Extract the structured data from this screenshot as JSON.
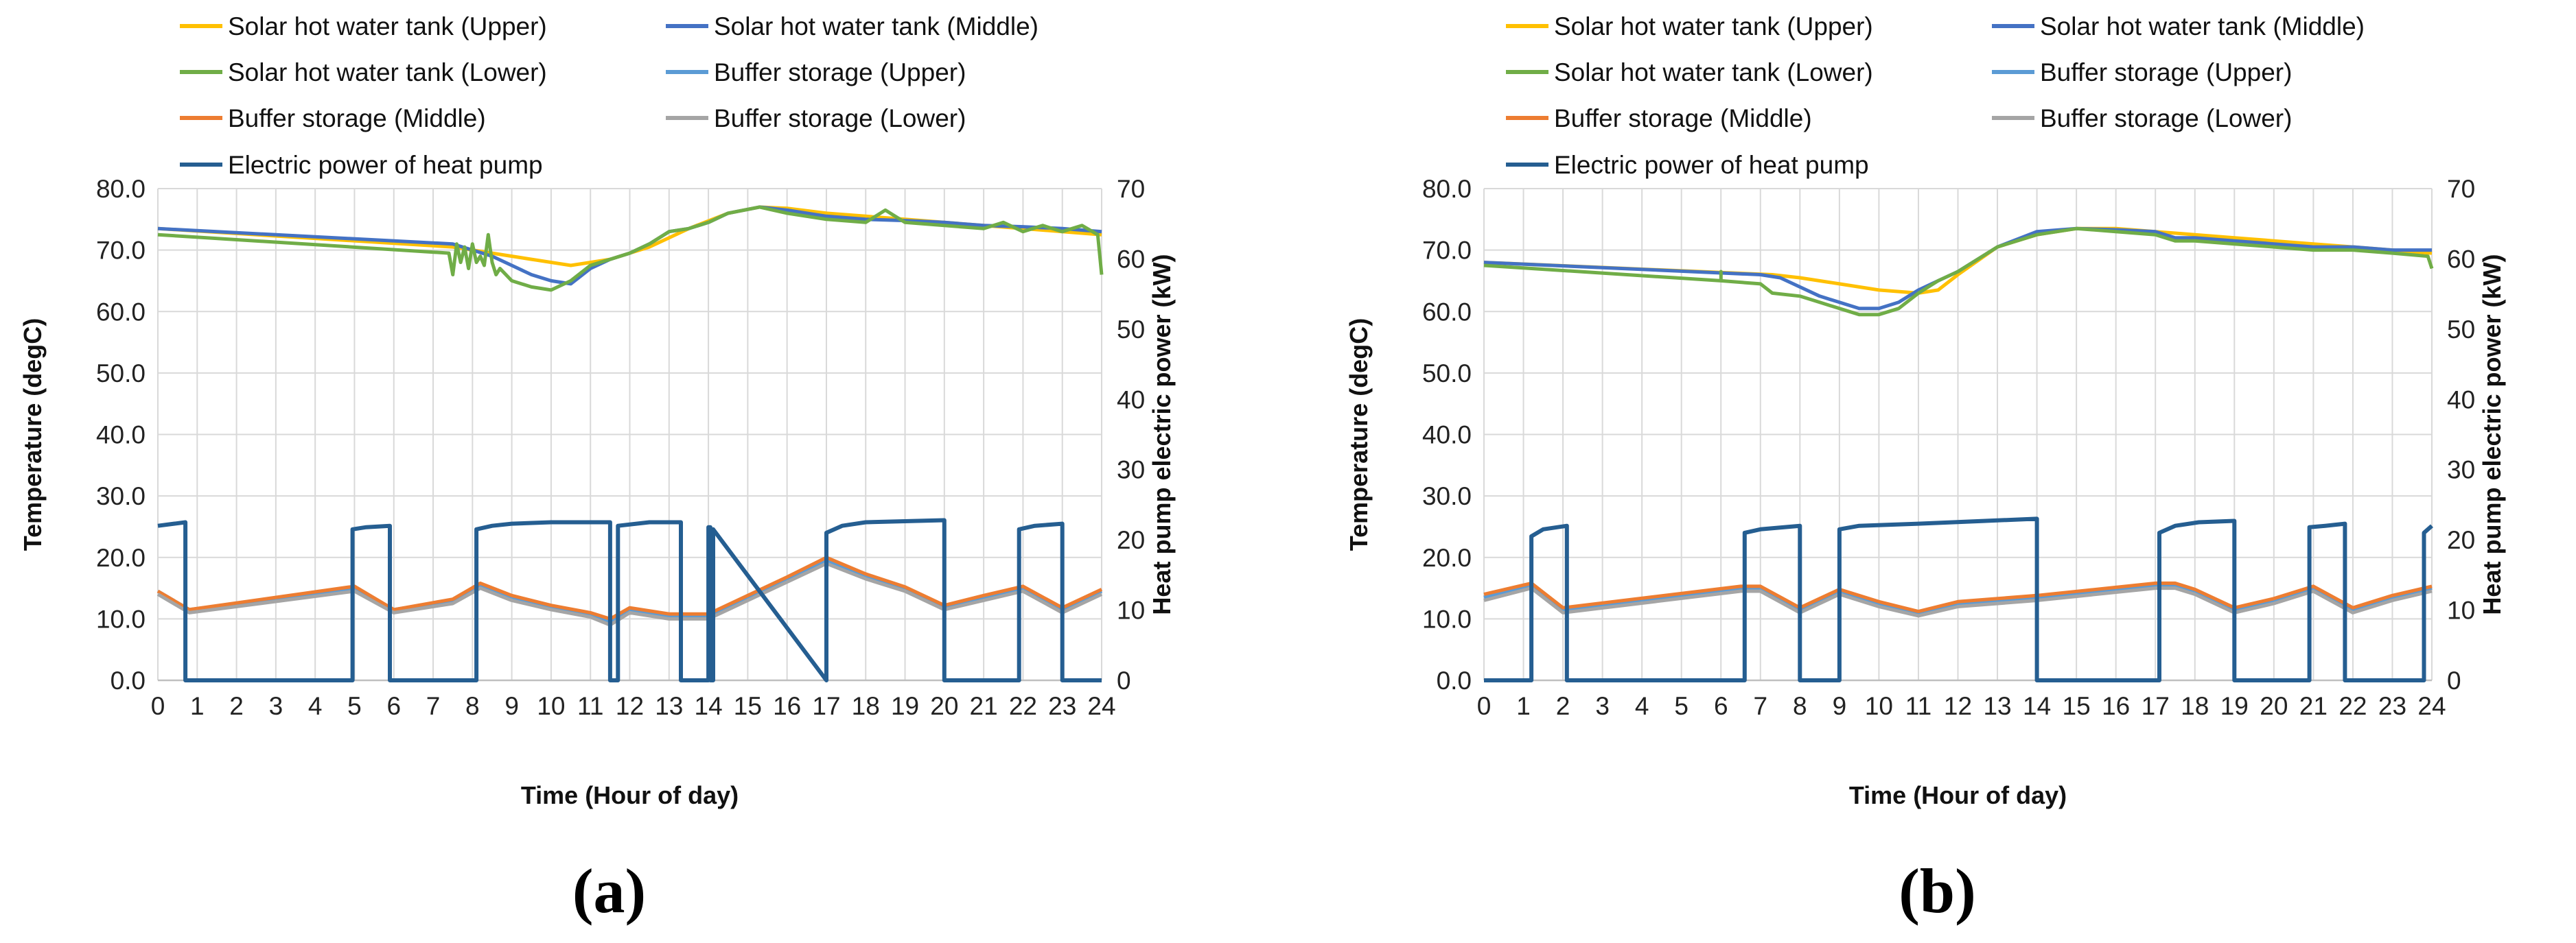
{
  "chart_data": [
    {
      "type": "line",
      "panel_label": "(a)",
      "xlabel": "Time (Hour of day)",
      "ylabel": "Temperature (degC)",
      "y2label": "Heat pump electric power (kW)",
      "xlim": [
        0,
        24
      ],
      "ylim": [
        0,
        80
      ],
      "y2lim": [
        0,
        70
      ],
      "x_ticks": [
        "0",
        "1",
        "2",
        "3",
        "4",
        "5",
        "6",
        "7",
        "8",
        "9",
        "10",
        "11",
        "12",
        "13",
        "14",
        "15",
        "16",
        "17",
        "18",
        "19",
        "20",
        "21",
        "22",
        "23",
        "24"
      ],
      "y_ticks": [
        "0.0",
        "10.0",
        "20.0",
        "30.0",
        "40.0",
        "50.0",
        "60.0",
        "70.0",
        "80.0"
      ],
      "y2_ticks": [
        "0",
        "10",
        "20",
        "30",
        "40",
        "50",
        "60",
        "70"
      ],
      "grid": true,
      "legend_position": "top",
      "series": [
        {
          "name": "Solar hot water tank (Upper)",
          "color": "#FFC000",
          "axis": "left",
          "x": [
            0,
            7.5,
            8.5,
            9.5,
            10.5,
            11.5,
            12.5,
            13.5,
            14.5,
            15.3,
            16,
            17,
            18,
            19,
            20,
            21,
            22,
            23,
            24
          ],
          "y": [
            73.5,
            70.5,
            69.5,
            68.5,
            67.5,
            68.5,
            70.5,
            73.5,
            76,
            77,
            76.8,
            76,
            75.5,
            75,
            74.5,
            74,
            73.5,
            73,
            72.5
          ]
        },
        {
          "name": "Solar hot water tank (Middle)",
          "color": "#4472C4",
          "axis": "left",
          "x": [
            0,
            7.5,
            8,
            8.5,
            9,
            9.5,
            10,
            10.5,
            11,
            11.5,
            12,
            12.5,
            13,
            13.5,
            14,
            14.5,
            15.3,
            16,
            17,
            18,
            19,
            20,
            21,
            22,
            23,
            24
          ],
          "y": [
            73.5,
            71,
            70,
            69,
            67.5,
            66,
            65,
            64.5,
            67,
            68.5,
            69.5,
            71,
            73,
            73.5,
            74.5,
            76,
            77,
            76.5,
            75.5,
            75,
            74.8,
            74.5,
            74,
            73.8,
            73.5,
            73
          ]
        },
        {
          "name": "Solar hot water tank (Lower)",
          "color": "#70AD47",
          "axis": "left",
          "x": [
            0,
            7.4,
            7.5,
            7.6,
            7.7,
            7.8,
            7.9,
            8,
            8.1,
            8.2,
            8.3,
            8.4,
            8.5,
            8.6,
            8.7,
            9,
            9.5,
            10,
            10.5,
            11,
            11.5,
            12,
            12.5,
            13,
            13.5,
            14,
            14.5,
            15.3,
            16,
            17,
            18,
            18.5,
            19,
            20,
            21,
            21.5,
            22,
            22.5,
            23,
            23.5,
            23.9,
            24
          ],
          "y": [
            72.5,
            69.5,
            66,
            71,
            68,
            70.5,
            67,
            71,
            68,
            69,
            67.5,
            72.5,
            68,
            66,
            67,
            65,
            64,
            63.5,
            65,
            67.5,
            68.5,
            69.5,
            71,
            73,
            73.5,
            74.5,
            76,
            77,
            76,
            75,
            74.5,
            76.5,
            74.5,
            74,
            73.5,
            74.5,
            73,
            74,
            73,
            74,
            72.5,
            66
          ]
        },
        {
          "name": "Buffer storage (Upper)",
          "color": "#5B9BD5",
          "axis": "left",
          "x": [
            0,
            0.8,
            5,
            6,
            7.5,
            8.2,
            9,
            10,
            11,
            11.5,
            12,
            13,
            14,
            15,
            16,
            17,
            18,
            19,
            20,
            21,
            22,
            23,
            24
          ],
          "y": [
            14.5,
            11.5,
            15,
            11.5,
            13,
            15.5,
            13.5,
            12,
            10.8,
            9.5,
            11.5,
            10.5,
            10.5,
            13.5,
            16.5,
            19.5,
            17,
            15,
            12,
            13.5,
            15,
            11.5,
            14.5
          ]
        },
        {
          "name": "Buffer storage (Middle)",
          "color": "#ED7D31",
          "axis": "left",
          "x": [
            0,
            0.8,
            5,
            6,
            7.5,
            8.2,
            9,
            10,
            11,
            11.5,
            12,
            13,
            14,
            15,
            16,
            17,
            18,
            19,
            20,
            21,
            22,
            23,
            24
          ],
          "y": [
            14.5,
            11.5,
            15.3,
            11.5,
            13.2,
            15.8,
            13.8,
            12.2,
            11,
            10,
            11.8,
            10.8,
            10.8,
            13.8,
            16.8,
            20,
            17.3,
            15.2,
            12.2,
            13.8,
            15.3,
            11.8,
            14.8
          ]
        },
        {
          "name": "Buffer storage (Lower)",
          "color": "#A5A5A5",
          "axis": "left",
          "x": [
            0,
            0.8,
            5,
            6,
            7.5,
            8.2,
            9,
            10,
            11,
            11.5,
            12,
            13,
            14,
            15,
            16,
            17,
            18,
            19,
            20,
            21,
            22,
            23,
            24
          ],
          "y": [
            14,
            11,
            14.5,
            11,
            12.5,
            15,
            13,
            11.5,
            10.3,
            9,
            11,
            10,
            10,
            13,
            16,
            19,
            16.5,
            14.5,
            11.5,
            13,
            14.5,
            11,
            14
          ]
        },
        {
          "name": "Electric power of heat pump",
          "color": "#255E91",
          "axis": "right",
          "x": [
            0,
            0.7,
            0.7,
            4.95,
            4.95,
            5.3,
            5.9,
            5.9,
            8.1,
            8.1,
            8.5,
            9,
            10,
            11.5,
            11.5,
            11.7,
            11.7,
            12.5,
            13.3,
            13.3,
            14,
            14,
            14.05,
            14.05,
            14.12,
            14.12,
            17,
            17,
            17.4,
            18,
            20,
            20,
            21.9,
            21.9,
            22.3,
            23,
            23,
            24
          ],
          "y": [
            22,
            22.5,
            0,
            0,
            21.5,
            21.8,
            22,
            0,
            0,
            21.5,
            22,
            22.3,
            22.5,
            22.5,
            0,
            0,
            22,
            22.5,
            22.5,
            0,
            0,
            21.8,
            21.8,
            0,
            0,
            21.5,
            0,
            21,
            22,
            22.5,
            22.8,
            0,
            0,
            21.5,
            22,
            22.3,
            0,
            0
          ]
        }
      ]
    },
    {
      "type": "line",
      "panel_label": "(b)",
      "xlabel": "Time (Hour of day)",
      "ylabel": "Temperature (degC)",
      "y2label": "Heat pump electric power (kW)",
      "xlim": [
        0,
        24
      ],
      "ylim": [
        0,
        80
      ],
      "y2lim": [
        0,
        70
      ],
      "x_ticks": [
        "0",
        "1",
        "2",
        "3",
        "4",
        "5",
        "6",
        "7",
        "8",
        "9",
        "10",
        "11",
        "12",
        "13",
        "14",
        "15",
        "16",
        "17",
        "18",
        "19",
        "20",
        "21",
        "22",
        "23",
        "24"
      ],
      "y_ticks": [
        "0.0",
        "10.0",
        "20.0",
        "30.0",
        "40.0",
        "50.0",
        "60.0",
        "70.0",
        "80.0"
      ],
      "y2_ticks": [
        "0",
        "10",
        "20",
        "30",
        "40",
        "50",
        "60",
        "70"
      ],
      "grid": true,
      "legend_position": "top",
      "series": [
        {
          "name": "Solar hot water tank (Upper)",
          "color": "#FFC000",
          "axis": "left",
          "x": [
            0,
            7.3,
            8,
            9,
            10,
            11,
            11.5,
            12,
            13,
            14,
            15,
            16,
            17,
            18,
            19,
            20,
            21,
            22,
            23,
            24
          ],
          "y": [
            68,
            66,
            65.5,
            64.5,
            63.5,
            63,
            63.5,
            66,
            70.5,
            72.5,
            73.5,
            73.5,
            73,
            72.5,
            72,
            71.5,
            71,
            70.5,
            70,
            69.5
          ]
        },
        {
          "name": "Solar hot water tank (Middle)",
          "color": "#4472C4",
          "axis": "left",
          "x": [
            0,
            7,
            7.5,
            8,
            8.5,
            9,
            9.5,
            10,
            10.5,
            11,
            11.5,
            12,
            13,
            14,
            15,
            16,
            17,
            17.5,
            18,
            19,
            20,
            21,
            22,
            23,
            24
          ],
          "y": [
            68,
            66,
            65.5,
            64,
            62.5,
            61.5,
            60.5,
            60.5,
            61.5,
            63.5,
            65,
            66.5,
            70.5,
            73,
            73.5,
            73.3,
            73,
            72,
            72,
            71.5,
            71,
            70.5,
            70.5,
            70,
            70
          ]
        },
        {
          "name": "Solar hot water tank (Lower)",
          "color": "#70AD47",
          "axis": "left",
          "x": [
            0,
            6,
            6,
            6,
            7,
            7.3,
            8,
            8.5,
            9,
            9.5,
            10,
            10.5,
            11,
            11.5,
            12,
            13,
            14,
            15,
            16,
            17,
            17.5,
            18,
            19,
            20,
            21,
            22,
            23,
            23.9,
            24
          ],
          "y": [
            67.5,
            65,
            66.5,
            65,
            64.5,
            63,
            62.5,
            61.5,
            60.5,
            59.5,
            59.5,
            60.5,
            63,
            65,
            66.5,
            70.5,
            72.5,
            73.5,
            73,
            72.5,
            71.5,
            71.5,
            71,
            70.5,
            70,
            70,
            69.5,
            69,
            67
          ]
        },
        {
          "name": "Buffer storage (Upper)",
          "color": "#5B9BD5",
          "axis": "left",
          "x": [
            0,
            1.2,
            2,
            6.5,
            7,
            8,
            9,
            10,
            11,
            12,
            14,
            17,
            17.5,
            18,
            19,
            20,
            21,
            22,
            23,
            24
          ],
          "y": [
            13.5,
            15.5,
            11.5,
            15,
            15,
            11.5,
            14.5,
            12.5,
            11,
            12.5,
            13.5,
            15.5,
            15.5,
            14.5,
            11.5,
            13,
            15,
            11.5,
            13.5,
            15
          ]
        },
        {
          "name": "Buffer storage (Middle)",
          "color": "#ED7D31",
          "axis": "left",
          "x": [
            0,
            1.2,
            2,
            6.5,
            7,
            8,
            9,
            10,
            11,
            12,
            14,
            17,
            17.5,
            18,
            19,
            20,
            21,
            22,
            23,
            24
          ],
          "y": [
            14,
            15.8,
            11.8,
            15.3,
            15.3,
            11.8,
            14.8,
            12.8,
            11.2,
            12.8,
            13.8,
            15.8,
            15.8,
            14.8,
            11.8,
            13.3,
            15.3,
            11.8,
            13.8,
            15.3
          ]
        },
        {
          "name": "Buffer storage (Lower)",
          "color": "#A5A5A5",
          "axis": "left",
          "x": [
            0,
            1.2,
            2,
            6.5,
            7,
            8,
            9,
            10,
            11,
            12,
            14,
            17,
            17.5,
            18,
            19,
            20,
            21,
            22,
            23,
            24
          ],
          "y": [
            13,
            15,
            11,
            14.5,
            14.5,
            11,
            14,
            12,
            10.5,
            12,
            13,
            15,
            15,
            14,
            11,
            12.5,
            14.5,
            11,
            13,
            14.5
          ]
        },
        {
          "name": "Electric power of heat pump",
          "color": "#255E91",
          "axis": "right",
          "x": [
            0,
            1.2,
            1.2,
            1.5,
            2.1,
            2.1,
            6.6,
            6.6,
            7,
            8,
            8,
            9,
            9,
            9.5,
            11,
            14,
            14,
            17.1,
            17.1,
            17.5,
            18.1,
            19,
            19,
            20.9,
            20.9,
            21.3,
            21.8,
            21.8,
            23.8,
            23.8,
            24
          ],
          "y": [
            0,
            0,
            20.5,
            21.5,
            22,
            0,
            0,
            21,
            21.5,
            22,
            0,
            0,
            21.5,
            22,
            22.3,
            23,
            0,
            0,
            21,
            22,
            22.5,
            22.7,
            0,
            0,
            21.8,
            22,
            22.3,
            0,
            0,
            21,
            22
          ]
        }
      ]
    }
  ]
}
